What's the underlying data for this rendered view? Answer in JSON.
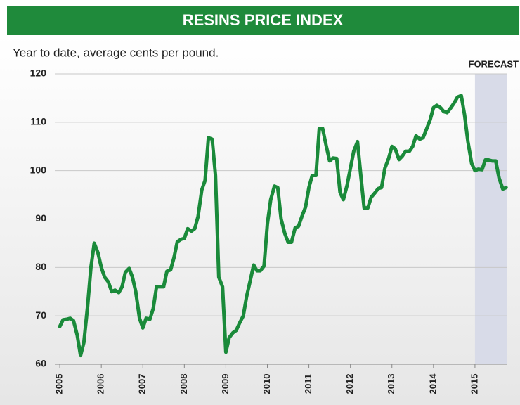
{
  "chart_data": {
    "type": "line",
    "title": "RESINS PRICE INDEX",
    "subtitle": "Year to date, average cents per pound.",
    "forecast_label": "FORECAST",
    "forecast_start": 2015,
    "x": [
      2005.0,
      2005.08,
      2005.17,
      2005.25,
      2005.33,
      2005.42,
      2005.5,
      2005.58,
      2005.67,
      2005.75,
      2005.83,
      2005.92,
      2006.0,
      2006.08,
      2006.17,
      2006.25,
      2006.33,
      2006.42,
      2006.5,
      2006.58,
      2006.67,
      2006.75,
      2006.83,
      2006.92,
      2007.0,
      2007.08,
      2007.17,
      2007.25,
      2007.33,
      2007.42,
      2007.5,
      2007.58,
      2007.67,
      2007.75,
      2007.83,
      2007.92,
      2008.0,
      2008.08,
      2008.17,
      2008.25,
      2008.33,
      2008.42,
      2008.5,
      2008.58,
      2008.67,
      2008.75,
      2008.83,
      2008.92,
      2009.0,
      2009.08,
      2009.17,
      2009.25,
      2009.33,
      2009.42,
      2009.5,
      2009.58,
      2009.67,
      2009.75,
      2009.83,
      2009.92,
      2010.0,
      2010.08,
      2010.17,
      2010.25,
      2010.33,
      2010.42,
      2010.5,
      2010.58,
      2010.67,
      2010.75,
      2010.83,
      2010.92,
      2011.0,
      2011.08,
      2011.17,
      2011.25,
      2011.33,
      2011.42,
      2011.5,
      2011.58,
      2011.67,
      2011.75,
      2011.83,
      2011.92,
      2012.0,
      2012.08,
      2012.17,
      2012.25,
      2012.33,
      2012.42,
      2012.5,
      2012.58,
      2012.67,
      2012.75,
      2012.83,
      2012.92,
      2013.0,
      2013.08,
      2013.17,
      2013.25,
      2013.33,
      2013.42,
      2013.5,
      2013.58,
      2013.67,
      2013.75,
      2013.83,
      2013.92,
      2014.0,
      2014.08,
      2014.17,
      2014.25,
      2014.33,
      2014.42,
      2014.5,
      2014.58,
      2014.67,
      2014.75,
      2014.83,
      2014.92,
      2015.0,
      2015.08,
      2015.17,
      2015.25,
      2015.33,
      2015.42,
      2015.5,
      2015.58,
      2015.67,
      2015.75
    ],
    "series": [
      {
        "name": "Resins price index",
        "color": "#1a8a3a",
        "values": [
          67.8,
          69.2,
          69.3,
          69.5,
          69.0,
          66,
          61.8,
          64.5,
          72,
          80,
          85,
          83,
          80,
          78,
          77,
          75,
          75.3,
          74.8,
          76,
          79,
          79.8,
          78,
          75,
          69.5,
          67.5,
          69.5,
          69.3,
          71.5,
          76,
          76,
          76,
          79.2,
          79.5,
          82,
          85.3,
          85.8,
          86,
          88,
          87.5,
          88,
          90.5,
          96,
          98,
          106.8,
          106.5,
          99,
          78,
          76,
          62.5,
          65.5,
          66.5,
          67,
          68.5,
          70,
          74,
          77,
          80.5,
          79.3,
          79.3,
          80.3,
          89,
          94,
          96.8,
          96.5,
          90,
          87,
          85.2,
          85.2,
          88.2,
          88.5,
          90.5,
          92.5,
          96.5,
          99,
          99,
          108.7,
          108.7,
          105,
          102,
          102.6,
          102.5,
          95.5,
          94,
          97,
          100.5,
          104,
          106,
          99,
          92.3,
          92.3,
          94.5,
          95.3,
          96.3,
          96.5,
          100.5,
          102.5,
          105,
          104.5,
          102.3,
          103,
          104,
          104,
          105,
          107.2,
          106.5,
          106.8,
          108.5,
          110.5,
          113,
          113.5,
          113,
          112.2,
          112,
          113,
          114,
          115.2,
          115.5,
          111.5,
          106,
          101.5,
          100,
          100.3,
          100.2,
          102.2,
          102.2,
          102,
          102,
          98.5,
          96.2,
          96.5
        ]
      }
    ],
    "xlim": [
      2004.88,
      2015.78
    ],
    "xticks": [
      2005,
      2006,
      2007,
      2008,
      2009,
      2010,
      2011,
      2012,
      2013,
      2014,
      2015
    ],
    "ylim": [
      60,
      120
    ],
    "yticks": [
      60,
      70,
      80,
      90,
      100,
      110,
      120
    ],
    "grid": true
  }
}
